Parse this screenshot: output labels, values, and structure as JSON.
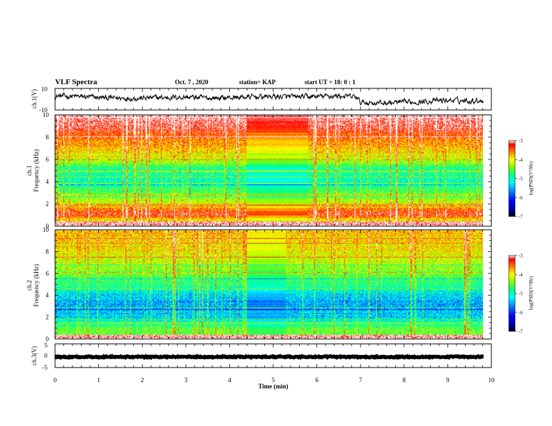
{
  "header": {
    "title": "VLF Spectra",
    "date": "Oct. 7 , 2020",
    "station": "station= KAP",
    "start_ut": "start  UT =  18: 0  : 1"
  },
  "chart_data": [
    {
      "type": "line",
      "name": "ch1-waveform",
      "ylabel": "ch.1(V)",
      "ylim": [
        -10,
        10
      ],
      "y_ticks": [
        "10",
        "-10"
      ],
      "xlim": [
        0,
        10
      ],
      "data_end_min": 9.82,
      "level_profile": [
        [
          0,
          3
        ],
        [
          0.5,
          2.5
        ],
        [
          1.0,
          1.5
        ],
        [
          1.5,
          1
        ],
        [
          2.0,
          1
        ],
        [
          2.5,
          1.5
        ],
        [
          3.0,
          2
        ],
        [
          3.5,
          1
        ],
        [
          4.0,
          1.5
        ],
        [
          4.5,
          2
        ],
        [
          5.0,
          2.5
        ],
        [
          5.5,
          2
        ],
        [
          6.0,
          2.5
        ],
        [
          6.5,
          3
        ],
        [
          6.9,
          2
        ],
        [
          7.0,
          -3
        ],
        [
          7.5,
          -3.5
        ],
        [
          8.0,
          -3
        ],
        [
          8.5,
          -2
        ],
        [
          9.0,
          -1
        ],
        [
          9.5,
          -1.5
        ],
        [
          9.82,
          -1
        ]
      ],
      "fluctuation_amplitude": 4
    },
    {
      "type": "heatmap",
      "name": "ch1-spectrogram",
      "ylabel_line1": "ch.1",
      "ylabel_line2": "Frequency  (kHz)",
      "ylim": [
        0,
        10
      ],
      "y_ticks": [
        "0",
        "2",
        "4",
        "6",
        "8",
        "10"
      ],
      "xlim": [
        0,
        10
      ],
      "data_end_min": 9.82,
      "level_profile": [
        [
          0,
          -4.9
        ],
        [
          1,
          -3.4
        ],
        [
          2,
          -4.3
        ],
        [
          3,
          -4.8
        ],
        [
          4,
          -5.2
        ],
        [
          5,
          -5.1
        ],
        [
          6,
          -4.4
        ],
        [
          7,
          -4.0
        ],
        [
          8,
          -3.7
        ],
        [
          9,
          -3.3
        ],
        [
          10,
          -3.1
        ]
      ],
      "quiet_interval_min": [
        4.4,
        5.8
      ],
      "colorbar": {
        "min": -7,
        "max": -3,
        "ticks": [
          "-3",
          "-4",
          "-5",
          "-6",
          "-7"
        ],
        "label": "log(PSD)(V²/Hz)"
      }
    },
    {
      "type": "heatmap",
      "name": "ch2-spectrogram",
      "ylabel_line1": "ch.2",
      "ylabel_line2": "Frequency  (kHz)",
      "ylim": [
        0,
        10
      ],
      "y_ticks": [
        "0",
        "2",
        "4",
        "6",
        "8",
        "10"
      ],
      "xlim": [
        0,
        10
      ],
      "data_end_min": 9.82,
      "level_profile": [
        [
          0,
          -4.6
        ],
        [
          1,
          -4.8
        ],
        [
          2,
          -5.5
        ],
        [
          3,
          -5.7
        ],
        [
          4,
          -5.5
        ],
        [
          5,
          -5.0
        ],
        [
          6,
          -4.7
        ],
        [
          7,
          -4.4
        ],
        [
          8,
          -4.2
        ],
        [
          9,
          -4.1
        ],
        [
          10,
          -4.0
        ]
      ],
      "quiet_interval_min": [
        4.4,
        5.3
      ],
      "colorbar": {
        "min": -7,
        "max": -3,
        "ticks": [
          "-3",
          "-4",
          "-5",
          "-6",
          "-7"
        ],
        "label": "log(PSD)(V²/Hz)"
      }
    },
    {
      "type": "line",
      "name": "ch3-waveform",
      "ylabel": "ch.3(V)",
      "ylim": [
        -5,
        5
      ],
      "y_ticks": [
        "5",
        "0",
        "-5"
      ],
      "xlim": [
        0,
        10
      ],
      "data_end_min": 9.82,
      "level_profile": [
        [
          0,
          -0.5
        ],
        [
          9.82,
          -0.5
        ]
      ],
      "fluctuation_amplitude": 0.4
    }
  ],
  "x_axis": {
    "label": "Time  (min)",
    "ticks": [
      "0",
      "1",
      "2",
      "3",
      "4",
      "5",
      "6",
      "7",
      "8",
      "9",
      "10"
    ],
    "range": [
      0,
      10
    ]
  },
  "colors": {
    "colormap": [
      "#000000",
      "#0000a0",
      "#0000ff",
      "#0080ff",
      "#00ffff",
      "#00ff80",
      "#80ff00",
      "#ffff00",
      "#ff8000",
      "#ff0000",
      "#ffffff"
    ],
    "line": "#000000",
    "background": "#ffffff"
  }
}
